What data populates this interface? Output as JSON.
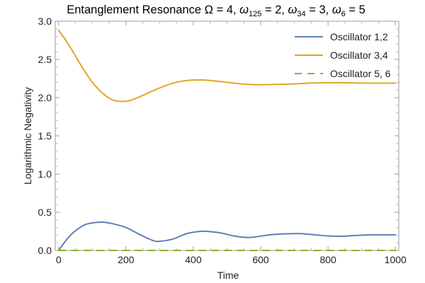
{
  "chart_data": {
    "type": "line",
    "title": {
      "prefix": "Entanglement Resonance ",
      "omega_sym": "Ω",
      "omega_val": " = 4, ",
      "w125_sym": "ω",
      "w125_sub": "125",
      "w125_val": " = 2, ",
      "w34_sym": "ω",
      "w34_sub": "34",
      "w34_val": " = 3, ",
      "w6_sym": "ω",
      "w6_sub": "6",
      "w6_val": " = 5"
    },
    "xlabel": "Time",
    "ylabel": "Logarithmic Negativity",
    "xlim": [
      -10,
      1010
    ],
    "ylim": [
      0,
      3.0
    ],
    "x_ticks": [
      0,
      200,
      400,
      600,
      800,
      1000
    ],
    "x_tick_labels": [
      "0",
      "200",
      "400",
      "600",
      "800",
      "1000"
    ],
    "y_ticks": [
      0,
      0.5,
      1.0,
      1.5,
      2.0,
      2.5,
      3.0
    ],
    "y_tick_labels": [
      "0.0",
      "0.5",
      "1.0",
      "1.5",
      "2.0",
      "2.5",
      "3.0"
    ],
    "grid": false,
    "legend_position": "top-right",
    "series": [
      {
        "name": "Oscillator 1,2",
        "color": "#5E81B5",
        "dash": "solid",
        "x": [
          0,
          20,
          40,
          60,
          80,
          100,
          130,
          160,
          200,
          240,
          280,
          300,
          340,
          380,
          420,
          440,
          480,
          520,
          560,
          580,
          620,
          660,
          700,
          720,
          760,
          800,
          840,
          860,
          900,
          940,
          980,
          1000
        ],
        "y": [
          0.0,
          0.12,
          0.22,
          0.29,
          0.34,
          0.36,
          0.37,
          0.35,
          0.3,
          0.21,
          0.13,
          0.12,
          0.15,
          0.22,
          0.25,
          0.25,
          0.23,
          0.19,
          0.17,
          0.175,
          0.2,
          0.215,
          0.22,
          0.22,
          0.205,
          0.19,
          0.185,
          0.19,
          0.2,
          0.205,
          0.205,
          0.205
        ]
      },
      {
        "name": "Oscillator 3,4",
        "color": "#E1A524",
        "dash": "solid",
        "x": [
          0,
          20,
          40,
          60,
          80,
          100,
          130,
          160,
          190,
          210,
          240,
          280,
          320,
          360,
          400,
          430,
          460,
          500,
          540,
          580,
          620,
          660,
          700,
          740,
          780,
          820,
          860,
          900,
          940,
          980,
          1000
        ],
        "y": [
          2.88,
          2.76,
          2.62,
          2.47,
          2.33,
          2.2,
          2.06,
          1.97,
          1.95,
          1.96,
          2.01,
          2.09,
          2.16,
          2.21,
          2.23,
          2.23,
          2.22,
          2.2,
          2.18,
          2.17,
          2.17,
          2.175,
          2.18,
          2.19,
          2.195,
          2.195,
          2.195,
          2.19,
          2.19,
          2.19,
          2.19
        ]
      },
      {
        "name": "Oscillator 5, 6",
        "color": "#8FB131",
        "dash": "dashed",
        "x": [
          0,
          200,
          400,
          600,
          800,
          1000
        ],
        "y": [
          0.0,
          0.0,
          0.0,
          0.0,
          0.0,
          0.0
        ]
      }
    ]
  }
}
